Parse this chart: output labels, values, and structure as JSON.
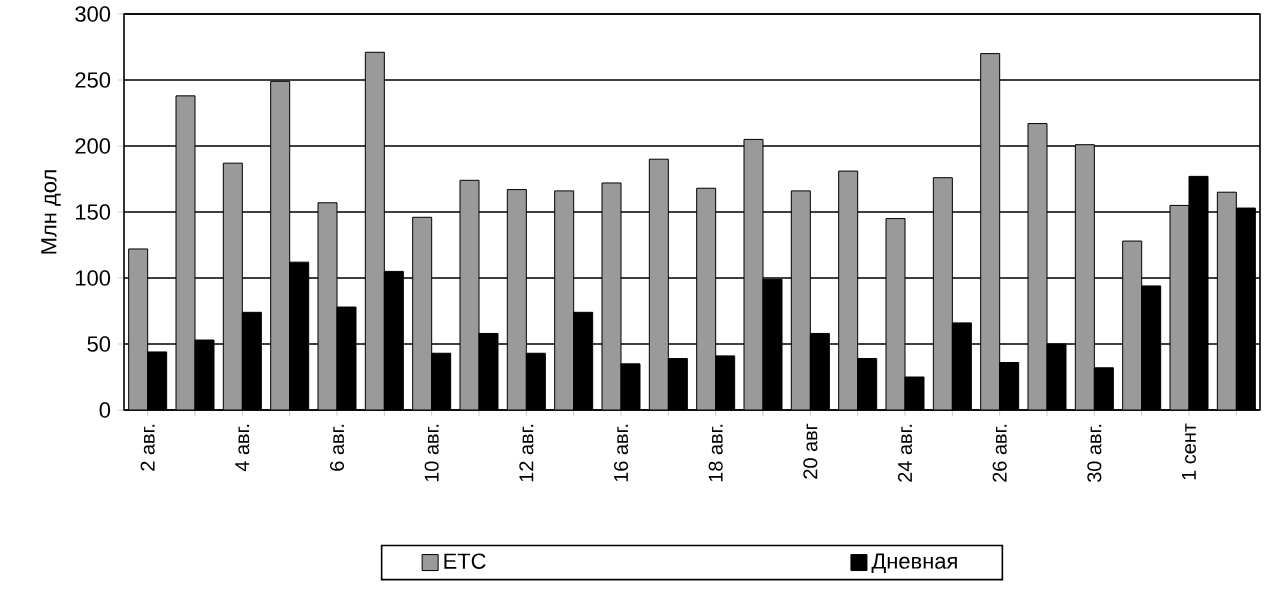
{
  "chart_data": {
    "type": "bar",
    "ylabel": "Млн  дол",
    "categories": [
      "2 авг.",
      null,
      "4 авг.",
      null,
      "6 авг.",
      null,
      "10 авг.",
      null,
      "12 авг.",
      null,
      "16 авг.",
      null,
      "18 авг.",
      null,
      "20 авг",
      null,
      "24 авг.",
      null,
      "26 авг.",
      null,
      "30 авг.",
      null,
      "1 сент",
      null
    ],
    "series": [
      {
        "name": "ETC",
        "color": "#9a9a9a",
        "values": [
          122,
          238,
          187,
          249,
          157,
          271,
          146,
          174,
          167,
          166,
          172,
          190,
          168,
          205,
          166,
          181,
          145,
          176,
          270,
          217,
          201,
          128,
          155,
          165
        ]
      },
      {
        "name": "Дневная",
        "color": "#000000",
        "values": [
          44,
          53,
          74,
          112,
          78,
          105,
          43,
          58,
          43,
          74,
          35,
          39,
          41,
          99,
          58,
          39,
          25,
          66,
          36,
          50,
          32,
          94,
          177,
          153
        ]
      }
    ],
    "ylim": [
      0,
      300
    ],
    "yticks": [
      0,
      50,
      100,
      150,
      200,
      250,
      300
    ],
    "grid": "y",
    "legend": "bottom"
  }
}
